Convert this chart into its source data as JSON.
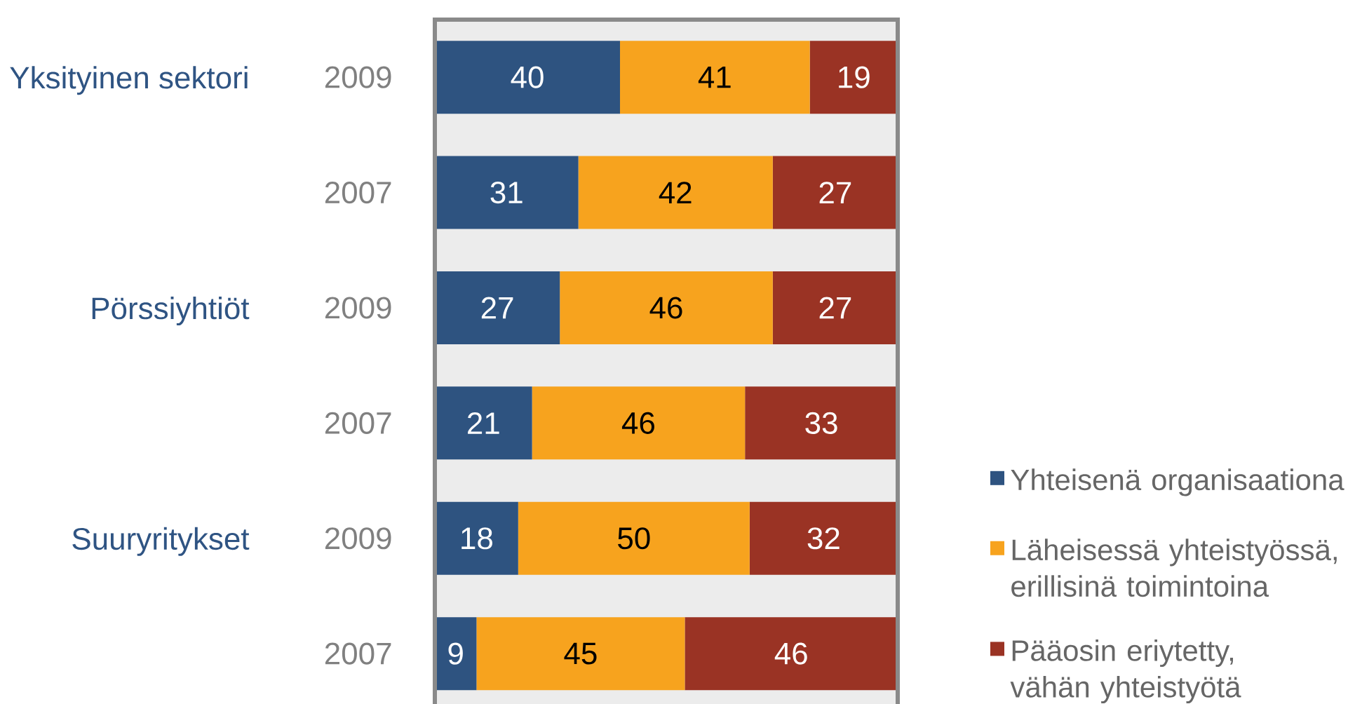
{
  "chart_data": {
    "type": "bar",
    "orientation": "horizontal",
    "stacked": true,
    "categories": [
      "2009",
      "2007",
      "2009",
      "2007",
      "2009",
      "2007"
    ],
    "series": [
      {
        "name": "Yhteisenä organisaationa",
        "color": "#2e5380",
        "values": [
          40,
          31,
          27,
          21,
          18,
          9
        ]
      },
      {
        "name": "Läheisessä yhteistyössä, erillisinä toimintoina",
        "color": "#f7a31e",
        "values": [
          41,
          42,
          46,
          46,
          50,
          45
        ]
      },
      {
        "name": "Pääosin eriytetty, vähän yhteistyötä",
        "color": "#9a3324",
        "values": [
          19,
          27,
          27,
          33,
          32,
          46
        ]
      }
    ],
    "annotations": [
      "Yksityinen sektori",
      "Pörssiyhtiöt",
      "Suuryritykset"
    ],
    "data_labels": true,
    "legend": "bottom right",
    "tick_labels": "y"
  }
}
